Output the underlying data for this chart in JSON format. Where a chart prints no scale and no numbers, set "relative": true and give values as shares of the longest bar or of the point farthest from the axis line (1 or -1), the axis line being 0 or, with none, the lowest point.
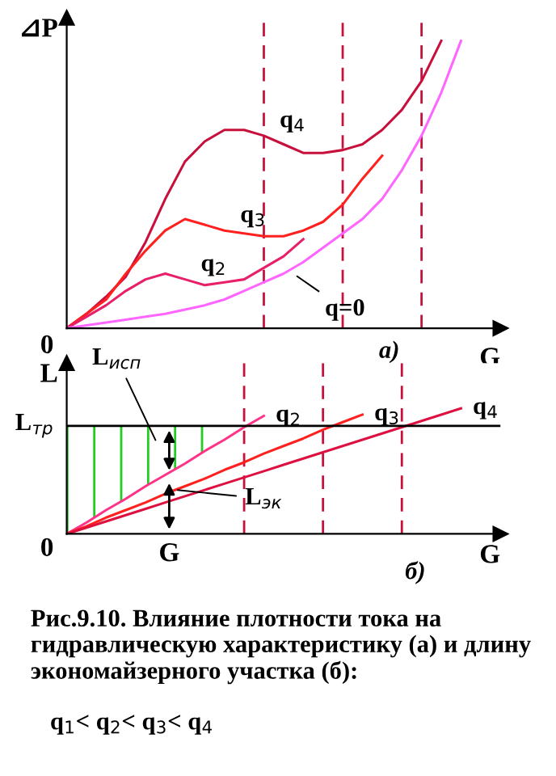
{
  "chart_data": [
    {
      "type": "line",
      "relative": true,
      "ylabel": "⊿P",
      "xlabel": "G",
      "legend": false,
      "marker": "none",
      "line_style": "solid",
      "categories": [
        null,
        null,
        null,
        null,
        null,
        null,
        null,
        null,
        null,
        null,
        null,
        null,
        null,
        null,
        null,
        null,
        null,
        null,
        null,
        null,
        null
      ],
      "annotations": [
        "а)",
        "0"
      ],
      "grid": "x",
      "series": [
        {
          "name": "q$_{4}$",
          "color": "#c8103c",
          "values": [
            0,
            0.05,
            0.11,
            0.18,
            0.3,
            0.45,
            0.58,
            0.65,
            0.69,
            0.69,
            0.67,
            0.64,
            0.61,
            0.61,
            0.62,
            0.64,
            0.69,
            0.76,
            0.86,
            1.0,
            null
          ]
        },
        {
          "name": "q$_{3}$",
          "color": "#ff2020",
          "values": [
            0,
            0.05,
            0.1,
            0.19,
            0.27,
            0.34,
            0.38,
            0.36,
            0.34,
            0.33,
            0.32,
            0.32,
            0.34,
            0.37,
            0.43,
            0.52,
            0.6,
            null,
            null,
            null,
            null
          ]
        },
        {
          "name": "q$_{2}$",
          "color": "#e8206a",
          "values": [
            0,
            0.04,
            0.08,
            0.13,
            0.17,
            0.19,
            0.17,
            0.15,
            0.16,
            0.17,
            0.21,
            0.25,
            0.31,
            null,
            null,
            null,
            null,
            null,
            null,
            null,
            null
          ]
        },
        {
          "name": "q=0",
          "color": "#ff66ff",
          "values": [
            0,
            0.01,
            0.02,
            0.03,
            0.04,
            0.05,
            0.065,
            0.08,
            0.1,
            0.13,
            0.16,
            0.19,
            0.23,
            0.28,
            0.33,
            0.38,
            0.45,
            0.55,
            0.67,
            0.82,
            1.0
          ]
        }
      ]
    },
    {
      "type": "line",
      "relative": true,
      "ylabel": "L",
      "xlabel": "G",
      "legend": false,
      "marker": "none",
      "line_style": "solid",
      "categories": [
        null,
        null,
        null,
        null,
        null,
        null,
        null,
        null,
        null,
        null,
        null,
        null,
        null,
        null,
        null,
        null,
        null,
        null,
        null,
        null,
        null
      ],
      "grid": "x",
      "annotations": [
        "б)",
        "0",
        "G",
        "L$_{исп}$",
        "L$_{эк}$",
        "Рис.9.10. Влияние плотности тока на гидравлическую характеристику (а) и длину экономайзерного участка (б):",
        "q$_{1}$< q$_{2}$< q$_{3}$< q$_{4}$"
      ],
      "series": [
        {
          "type": "area",
          "color": "#22cc22",
          "values": [
            0.86,
            0.86,
            0.86,
            0.86,
            0.86,
            0.86,
            0.86,
            0.86,
            null,
            null,
            null,
            null,
            null,
            null,
            null,
            null,
            null,
            null,
            null,
            null,
            null
          ]
        },
        {
          "name": "q$_{2}$",
          "color": "#ff3388",
          "values": [
            0,
            0.09,
            0.19,
            0.28,
            0.38,
            0.47,
            0.56,
            0.66,
            0.75,
            0.85,
            0.94,
            null,
            null,
            null,
            null,
            null,
            null,
            null,
            null,
            null,
            null
          ]
        },
        {
          "name": "q$_{3}$",
          "color": "#ff2020",
          "values": [
            0,
            0.06,
            0.13,
            0.19,
            0.25,
            0.32,
            0.38,
            0.44,
            0.51,
            0.57,
            0.64,
            0.7,
            0.76,
            0.83,
            0.89,
            0.95,
            null,
            null,
            null,
            null,
            null
          ]
        },
        {
          "name": "q$_{4}$",
          "color": "#dd1040",
          "values": [
            0,
            0.05,
            0.1,
            0.15,
            0.2,
            0.25,
            0.3,
            0.35,
            0.4,
            0.45,
            0.5,
            0.55,
            0.6,
            0.65,
            0.7,
            0.75,
            0.8,
            0.85,
            0.9,
            0.95,
            1.0
          ]
        }
      ],
      "ref_lines": [
        {
          "axis": "y",
          "value": 0.86,
          "label": "L$_{тр}$",
          "color": "#000000",
          "line_style": "solid"
        }
      ]
    }
  ]
}
